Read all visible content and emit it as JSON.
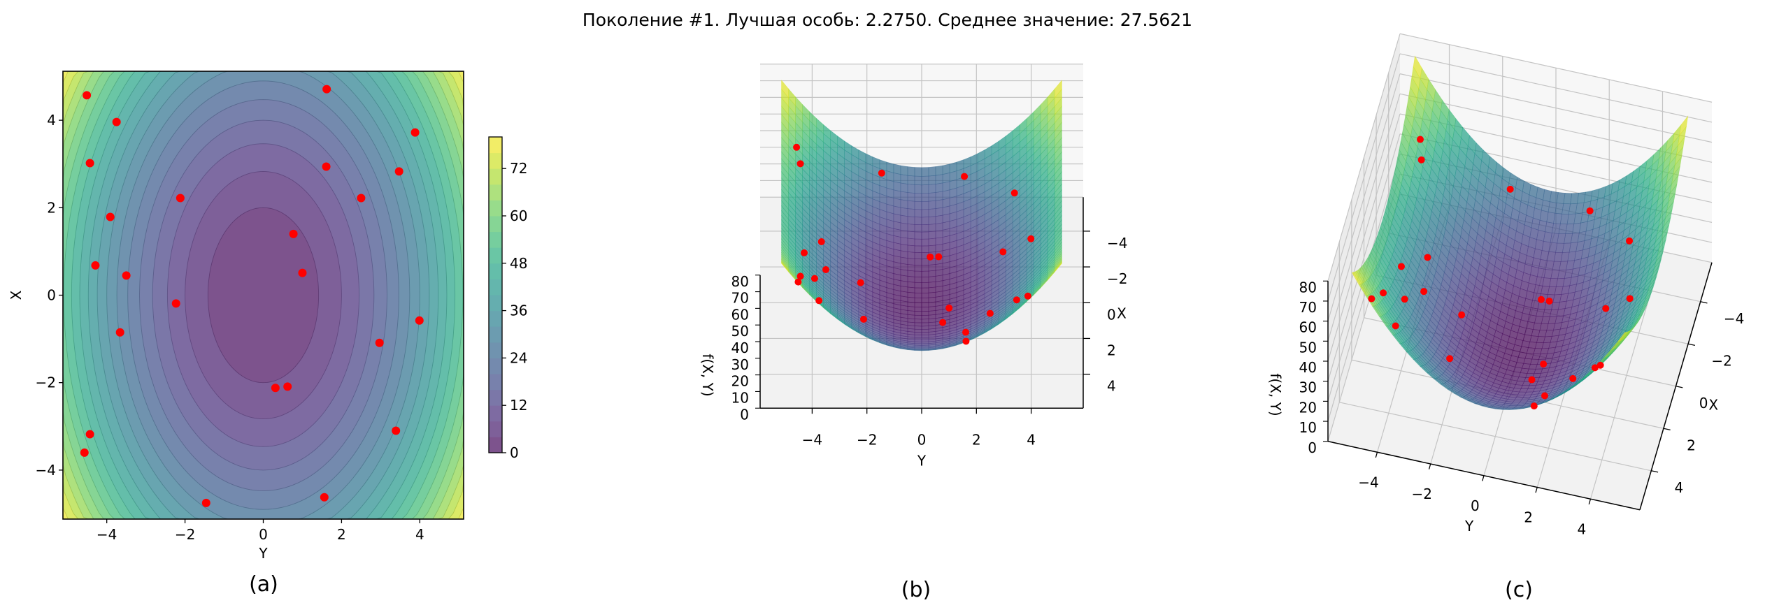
{
  "figure": {
    "title": "Поколение #1. Лучшая особь: 2.2750. Среднее значение: 27.5621",
    "panel_labels": [
      "(a)",
      "(b)",
      "(c)"
    ]
  },
  "colors": {
    "points": "#ff0000",
    "colormap": "viridis",
    "colormap_stops": [
      "#440154",
      "#482475",
      "#414487",
      "#355f8d",
      "#2a788e",
      "#21918c",
      "#22a884",
      "#44bf70",
      "#7ad151",
      "#bddf26",
      "#fde725"
    ]
  },
  "chart_data": [
    {
      "type": "contour",
      "xlabel": "Y",
      "ylabel": "X",
      "xlim": [
        -5.12,
        5.12
      ],
      "ylim": [
        -5.12,
        5.12
      ],
      "x_ticks": [
        {
          "value": -4,
          "label": "−4"
        },
        {
          "value": -2,
          "label": "−2"
        },
        {
          "value": 0,
          "label": "0"
        },
        {
          "value": 2,
          "label": "2"
        },
        {
          "value": 4,
          "label": "4"
        }
      ],
      "y_ticks": [
        {
          "value": -4,
          "label": "−4"
        },
        {
          "value": -2,
          "label": "−2"
        },
        {
          "value": 0,
          "label": "0"
        },
        {
          "value": 2,
          "label": "2"
        },
        {
          "value": 4,
          "label": "4"
        }
      ],
      "levels": [
        0,
        4,
        8,
        12,
        16,
        20,
        24,
        28,
        32,
        36,
        40,
        44,
        48,
        52,
        56,
        60,
        64,
        68,
        72,
        76,
        80
      ],
      "colorbar": {
        "ticks": [
          {
            "value": 0,
            "label": "0"
          },
          {
            "value": 12,
            "label": "12"
          },
          {
            "value": 24,
            "label": "24"
          },
          {
            "value": 36,
            "label": "36"
          },
          {
            "value": 48,
            "label": "48"
          },
          {
            "value": 60,
            "label": "60"
          },
          {
            "value": 72,
            "label": "72"
          }
        ]
      },
      "alpha": 0.7,
      "grid": false,
      "points": [
        {
          "Y": -4.51,
          "X": 4.57
        },
        {
          "Y": -3.75,
          "X": 3.96
        },
        {
          "Y": -4.43,
          "X": 3.02
        },
        {
          "Y": -3.91,
          "X": 1.79
        },
        {
          "Y": -2.12,
          "X": 2.22
        },
        {
          "Y": -4.29,
          "X": 0.68
        },
        {
          "Y": -3.5,
          "X": 0.45
        },
        {
          "Y": -2.23,
          "X": -0.19
        },
        {
          "Y": -3.66,
          "X": -0.85
        },
        {
          "Y": -4.43,
          "X": -3.18
        },
        {
          "Y": -4.57,
          "X": -3.6
        },
        {
          "Y": -1.46,
          "X": -4.75
        },
        {
          "Y": 0.31,
          "X": -2.12
        },
        {
          "Y": 0.62,
          "X": -2.09
        },
        {
          "Y": 0.77,
          "X": 1.4
        },
        {
          "Y": 1.0,
          "X": 0.51
        },
        {
          "Y": 1.62,
          "X": 4.71
        },
        {
          "Y": 1.61,
          "X": 2.94
        },
        {
          "Y": 2.5,
          "X": 2.22
        },
        {
          "Y": 3.47,
          "X": 2.83
        },
        {
          "Y": 3.88,
          "X": 3.72
        },
        {
          "Y": 3.99,
          "X": -0.58
        },
        {
          "Y": 2.97,
          "X": -1.09
        },
        {
          "Y": 3.39,
          "X": -3.1
        },
        {
          "Y": 1.56,
          "X": -4.62
        }
      ]
    },
    {
      "type": "surface3d",
      "xlabel": "Y",
      "ylabel": "X",
      "zlabel": "f(X, Y)",
      "zlim": [
        0,
        80
      ],
      "y_axis_ticks": [
        {
          "value": -4,
          "label": "−4"
        },
        {
          "value": -2,
          "label": "−2"
        },
        {
          "value": 0,
          "label": "0"
        },
        {
          "value": 2,
          "label": "2"
        },
        {
          "value": 4,
          "label": "4"
        }
      ],
      "x_axis_ticks": [
        {
          "value": -4,
          "label": "−4"
        },
        {
          "value": -2,
          "label": "−2"
        },
        {
          "value": 0,
          "label": "0"
        },
        {
          "value": 2,
          "label": "2"
        },
        {
          "value": 4,
          "label": "4"
        }
      ],
      "z_ticks": [
        {
          "value": 0,
          "label": "0"
        },
        {
          "value": 10,
          "label": "10"
        },
        {
          "value": 20,
          "label": "20"
        },
        {
          "value": 30,
          "label": "30"
        },
        {
          "value": 40,
          "label": "40"
        },
        {
          "value": 50,
          "label": "50"
        },
        {
          "value": 60,
          "label": "60"
        },
        {
          "value": 70,
          "label": "70"
        },
        {
          "value": 80,
          "label": "80"
        }
      ],
      "alpha": 0.7,
      "grid": true
    },
    {
      "type": "surface3d",
      "xlabel": "Y",
      "ylabel": "X",
      "zlabel": "f(X, Y)",
      "zlim": [
        0,
        80
      ],
      "y_axis_ticks": [
        {
          "value": -4,
          "label": "−4"
        },
        {
          "value": -2,
          "label": "−2"
        },
        {
          "value": 0,
          "label": "0"
        },
        {
          "value": 2,
          "label": "2"
        },
        {
          "value": 4,
          "label": "4"
        }
      ],
      "x_axis_ticks": [
        {
          "value": -4,
          "label": "−4"
        },
        {
          "value": -2,
          "label": "−2"
        },
        {
          "value": 0,
          "label": "0"
        },
        {
          "value": 2,
          "label": "2"
        },
        {
          "value": 4,
          "label": "4"
        }
      ],
      "z_ticks": [
        {
          "value": 0,
          "label": "0"
        },
        {
          "value": 10,
          "label": "10"
        },
        {
          "value": 20,
          "label": "20"
        },
        {
          "value": 30,
          "label": "30"
        },
        {
          "value": 40,
          "label": "40"
        },
        {
          "value": 50,
          "label": "50"
        },
        {
          "value": 60,
          "label": "60"
        },
        {
          "value": 70,
          "label": "70"
        },
        {
          "value": 80,
          "label": "80"
        }
      ],
      "alpha": 0.7,
      "grid": true
    }
  ]
}
